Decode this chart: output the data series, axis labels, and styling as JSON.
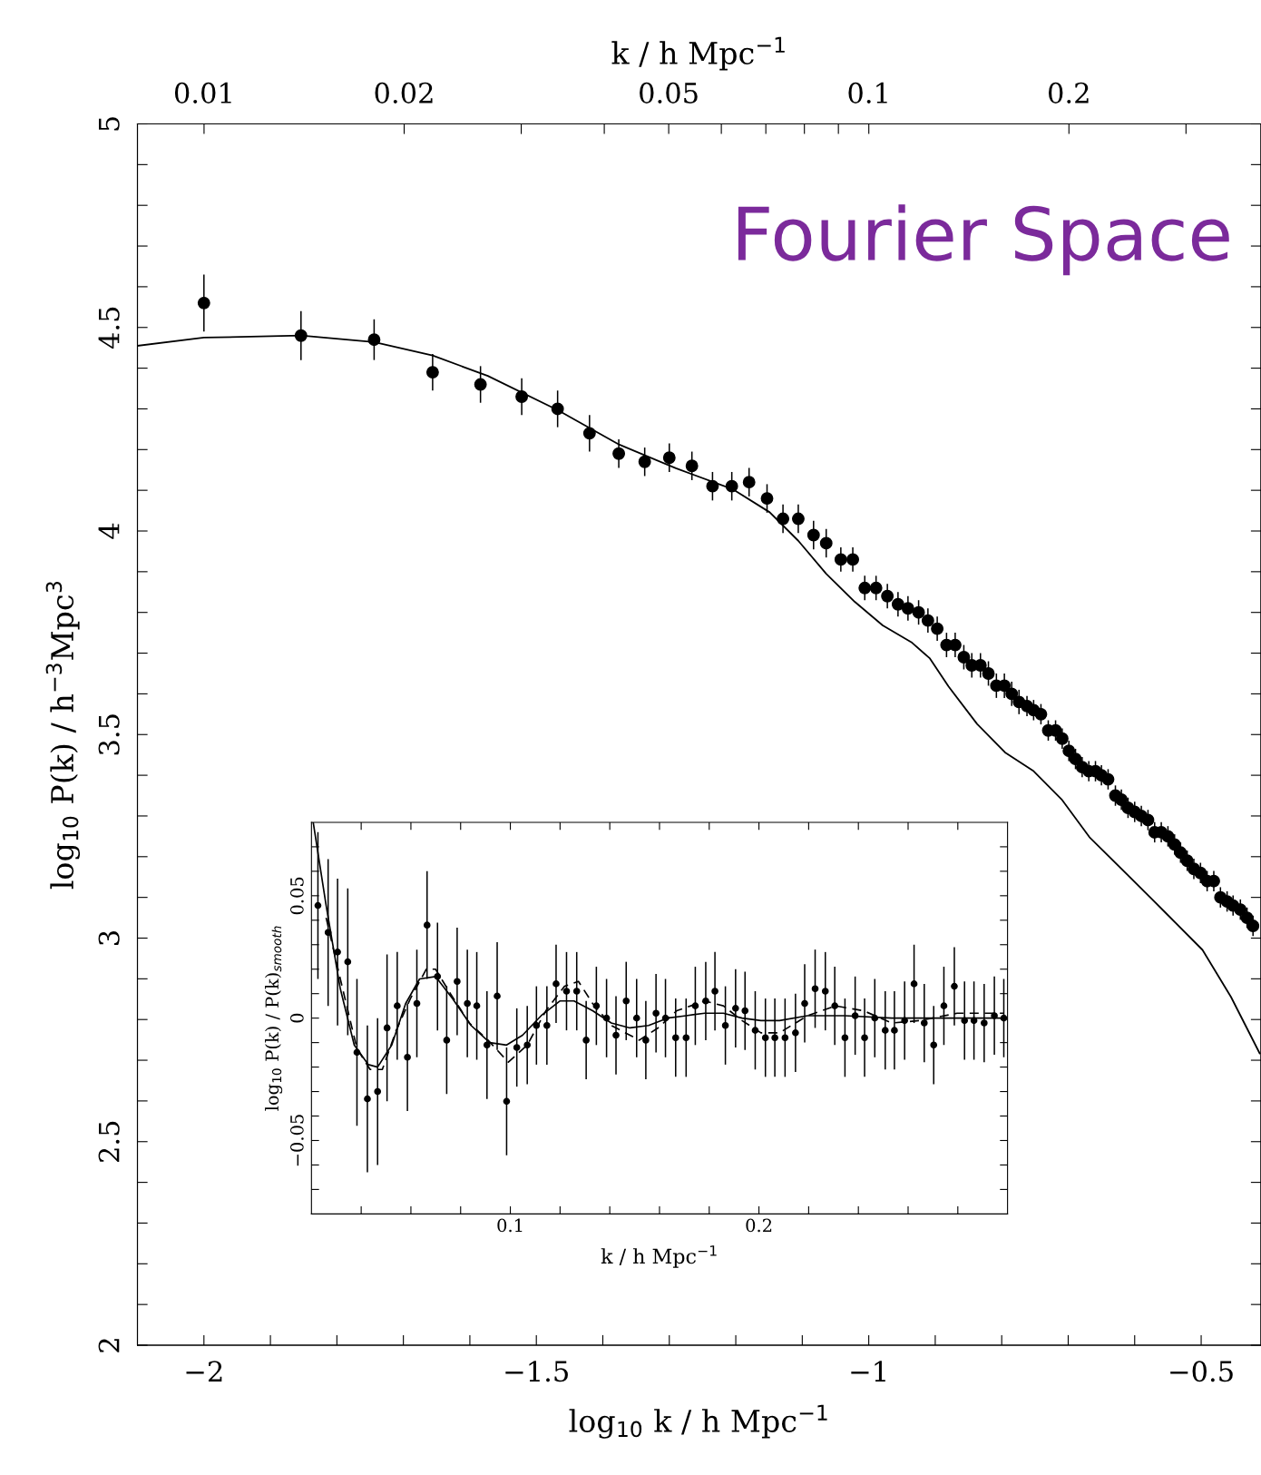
{
  "chart_data": [
    {
      "type": "scatter",
      "xlabel": "log$_{10}$ k / h Mpc$^{−1}$",
      "ylabel": "log$_{10}$ P(k) / h$^{−3}$Mpc$^{3}$",
      "x2label": "k / h Mpc$^{−1}$",
      "log": "x2",
      "grid": false,
      "annotations": [
        "Fourier Space"
      ],
      "xlim": [
        -2.1,
        -0.41
      ],
      "ylim": [
        2,
        5
      ],
      "xticks": [
        {
          "value": -2,
          "label": "−2"
        },
        {
          "value": -1.9,
          "label": null
        },
        {
          "value": -1.8,
          "label": null
        },
        {
          "value": -1.7,
          "label": null
        },
        {
          "value": -1.6,
          "label": null
        },
        {
          "value": -1.5,
          "label": "−1.5"
        },
        {
          "value": -1.4,
          "label": null
        },
        {
          "value": -1.3,
          "label": null
        },
        {
          "value": -1.2,
          "label": null
        },
        {
          "value": -1.1,
          "label": null
        },
        {
          "value": -1,
          "label": "−1"
        },
        {
          "value": -0.9,
          "label": null
        },
        {
          "value": -0.8,
          "label": null
        },
        {
          "value": -0.7,
          "label": null
        },
        {
          "value": -0.6,
          "label": null
        },
        {
          "value": -0.5,
          "label": "−0.5"
        }
      ],
      "yticks": [
        2,
        {
          "value": 2.1,
          "label": null
        },
        {
          "value": 2.2,
          "label": null
        },
        {
          "value": 2.3,
          "label": null
        },
        {
          "value": 2.4,
          "label": null
        },
        2.5,
        {
          "value": 2.6,
          "label": null
        },
        {
          "value": 2.7,
          "label": null
        },
        {
          "value": 2.8,
          "label": null
        },
        {
          "value": 2.9,
          "label": null
        },
        3,
        {
          "value": 3.1,
          "label": null
        },
        {
          "value": 3.2,
          "label": null
        },
        {
          "value": 3.3,
          "label": null
        },
        {
          "value": 3.4,
          "label": null
        },
        3.5,
        {
          "value": 3.6,
          "label": null
        },
        {
          "value": 3.7,
          "label": null
        },
        {
          "value": 3.8,
          "label": null
        },
        {
          "value": 3.9,
          "label": null
        },
        4,
        {
          "value": 4.1,
          "label": null
        },
        {
          "value": 4.2,
          "label": null
        },
        {
          "value": 4.3,
          "label": null
        },
        {
          "value": 4.4,
          "label": null
        },
        4.5,
        {
          "value": 4.6,
          "label": null
        },
        {
          "value": 4.7,
          "label": null
        },
        {
          "value": 4.8,
          "label": null
        },
        {
          "value": 4.9,
          "label": null
        },
        5
      ],
      "x2lim": [
        0.00794,
        0.389
      ],
      "x2ticks": [
        0.01,
        {
          "value": 0.03,
          "label": null
        },
        {
          "value": 0.04,
          "label": null
        },
        0.02,
        0.05,
        {
          "value": 0.06,
          "label": null
        },
        {
          "value": 0.07,
          "label": null
        },
        {
          "value": 0.08,
          "label": null
        },
        {
          "value": 0.09,
          "label": null
        },
        0.1,
        0.2,
        {
          "value": 0.3,
          "label": null
        }
      ],
      "series": [
        {
          "marker": "circle",
          "color": "#000000",
          "x": [
            -2.0,
            -1.854,
            -1.744,
            -1.656,
            -1.584,
            -1.522,
            -1.468,
            -1.42,
            -1.376,
            -1.337,
            -1.3,
            -1.266,
            -1.235,
            -1.206,
            -1.18,
            -1.153,
            -1.129,
            -1.106,
            -1.083,
            -1.064,
            -1.042,
            -1.024,
            -1.006,
            -0.989,
            -0.972,
            -0.956,
            -0.941,
            -0.925,
            -0.911,
            -0.897,
            -0.883,
            -0.87,
            -0.857,
            -0.845,
            -0.832,
            -0.82,
            -0.808,
            -0.796,
            -0.785,
            -0.774,
            -0.762,
            -0.752,
            -0.741,
            -0.73,
            -0.719,
            -0.709,
            -0.699,
            -0.689,
            -0.679,
            -0.669,
            -0.659,
            -0.65,
            -0.64,
            -0.629,
            -0.62,
            -0.61,
            -0.6,
            -0.59,
            -0.58,
            -0.57,
            -0.56,
            -0.55,
            -0.54,
            -0.531,
            -0.521,
            -0.511,
            -0.501,
            -0.491,
            -0.481,
            -0.471,
            -0.461,
            -0.452,
            -0.441,
            -0.431,
            -0.422
          ],
          "values": [
            4.56,
            4.48,
            4.47,
            4.39,
            4.36,
            4.33,
            4.3,
            4.24,
            4.19,
            4.17,
            4.18,
            4.16,
            4.11,
            4.11,
            4.12,
            4.08,
            4.03,
            4.03,
            3.99,
            3.97,
            3.93,
            3.93,
            3.86,
            3.86,
            3.84,
            3.82,
            3.81,
            3.8,
            3.78,
            3.76,
            3.72,
            3.72,
            3.69,
            3.67,
            3.67,
            3.65,
            3.62,
            3.62,
            3.6,
            3.58,
            3.57,
            3.56,
            3.55,
            3.51,
            3.51,
            3.49,
            3.46,
            3.44,
            3.42,
            3.41,
            3.41,
            3.4,
            3.39,
            3.35,
            3.34,
            3.32,
            3.31,
            3.3,
            3.29,
            3.26,
            3.26,
            3.25,
            3.23,
            3.21,
            3.19,
            3.17,
            3.16,
            3.14,
            3.14,
            3.1,
            3.09,
            3.08,
            3.07,
            3.05,
            3.03
          ],
          "errors": [
            0.07,
            0.06,
            0.05,
            0.045,
            0.045,
            0.045,
            0.045,
            0.045,
            0.035,
            0.035,
            0.035,
            0.035,
            0.035,
            0.035,
            0.035,
            0.035,
            0.035,
            0.035,
            0.035,
            0.035,
            0.03,
            0.03,
            0.03,
            0.03,
            0.03,
            0.03,
            0.03,
            0.03,
            0.03,
            0.03,
            0.03,
            0.03,
            0.03,
            0.03,
            0.03,
            0.03,
            0.03,
            0.03,
            0.03,
            0.03,
            0.025,
            0.025,
            0.025,
            0.025,
            0.025,
            0.025,
            0.025,
            0.025,
            0.025,
            0.025,
            0.025,
            0.025,
            0.025,
            0.025,
            0.025,
            0.025,
            0.025,
            0.025,
            0.025,
            0.025,
            0.025,
            0.025,
            0.025,
            0.025,
            0.025,
            0.025,
            0.025,
            0.025,
            0.025,
            0.025,
            0.025,
            0.025,
            0.025,
            0.025,
            0.025
          ]
        },
        {
          "type": "line",
          "marker": "none",
          "line_style": "solid",
          "color": "#000000",
          "x": [
            -2.1,
            -2.0,
            -1.854,
            -1.744,
            -1.656,
            -1.573,
            -1.468,
            -1.375,
            -1.29,
            -1.205,
            -1.149,
            -1.106,
            -1.064,
            -1.021,
            -0.979,
            -0.936,
            -0.908,
            -0.88,
            -0.837,
            -0.795,
            -0.752,
            -0.71,
            -0.668,
            -0.611,
            -0.554,
            -0.498,
            -0.455,
            -0.412
          ],
          "values": [
            4.455,
            4.475,
            4.48,
            4.464,
            4.431,
            4.381,
            4.297,
            4.212,
            4.154,
            4.103,
            4.046,
            3.976,
            3.895,
            3.826,
            3.768,
            3.727,
            3.687,
            3.618,
            3.526,
            3.456,
            3.41,
            3.341,
            3.248,
            3.156,
            3.063,
            2.971,
            2.855,
            2.717
          ]
        }
      ]
    },
    {
      "type": "scatter",
      "xlabel": "k / h Mpc$^{−1}$",
      "ylabel": "log$_{10}$ P(k) / P(k)$_{smooth}$",
      "grid": false,
      "xlim": [
        0.02,
        0.3
      ],
      "ylim": [
        -0.08,
        0.08
      ],
      "xticks": [
        {
          "value": 0.04,
          "label": null
        },
        {
          "value": 0.06,
          "label": null
        },
        {
          "value": 0.08,
          "label": null
        },
        0.1,
        {
          "value": 0.12,
          "label": null
        },
        {
          "value": 0.14,
          "label": null
        },
        {
          "value": 0.16,
          "label": null
        },
        {
          "value": 0.18,
          "label": null
        },
        0.2,
        {
          "value": 0.22,
          "label": null
        },
        {
          "value": 0.24,
          "label": null
        },
        {
          "value": 0.26,
          "label": null
        },
        {
          "value": 0.28,
          "label": null
        }
      ],
      "yticks": [
        {
          "value": -0.07,
          "label": null
        },
        {
          "value": -0.06,
          "label": null
        },
        {
          "value": -0.05,
          "label": "−0.05"
        },
        {
          "value": -0.04,
          "label": null
        },
        {
          "value": -0.03,
          "label": null
        },
        {
          "value": -0.02,
          "label": null
        },
        {
          "value": -0.01,
          "label": null
        },
        0,
        {
          "value": 0.01,
          "label": null
        },
        {
          "value": 0.02,
          "label": null
        },
        {
          "value": 0.03,
          "label": null
        },
        {
          "value": 0.04,
          "label": null
        },
        0.05,
        {
          "value": 0.06,
          "label": null
        },
        {
          "value": 0.07,
          "label": null
        }
      ],
      "series": [
        {
          "marker": "circle",
          "color": "#000000",
          "x": [
            0.0226,
            0.0267,
            0.0305,
            0.0346,
            0.0383,
            0.0425,
            0.0466,
            0.0504,
            0.0545,
            0.0586,
            0.0624,
            0.0665,
            0.0707,
            0.0744,
            0.0786,
            0.0827,
            0.0865,
            0.0906,
            0.0947,
            0.0985,
            0.1026,
            0.1068,
            0.1105,
            0.1147,
            0.1184,
            0.1226,
            0.1267,
            0.1305,
            0.1346,
            0.1387,
            0.1425,
            0.1466,
            0.1508,
            0.1545,
            0.1586,
            0.1624,
            0.1665,
            0.1707,
            0.1744,
            0.1786,
            0.1823,
            0.1865,
            0.1906,
            0.1944,
            0.1985,
            0.2026,
            0.2064,
            0.2105,
            0.2147,
            0.2184,
            0.2226,
            0.2267,
            0.2305,
            0.2346,
            0.2387,
            0.2425,
            0.2466,
            0.2508,
            0.2545,
            0.2586,
            0.2624,
            0.2665,
            0.2703,
            0.2744,
            0.2786,
            0.2827,
            0.2865,
            0.2906,
            0.2947,
            0.2985
          ],
          "values": [
            0.046,
            0.035,
            0.027,
            0.023,
            -0.014,
            -0.033,
            -0.03,
            -0.004,
            0.005,
            -0.016,
            0.006,
            0.038,
            0.017,
            -0.009,
            0.015,
            0.006,
            0.005,
            -0.011,
            0.009,
            -0.034,
            -0.012,
            -0.011,
            -0.003,
            -0.003,
            0.014,
            0.011,
            0.011,
            -0.009,
            0.005,
            0.0,
            -0.007,
            0.007,
            0.0,
            -0.009,
            0.002,
            0.0,
            -0.008,
            -0.008,
            0.005,
            0.007,
            0.011,
            -0.003,
            0.004,
            0.003,
            -0.005,
            -0.008,
            -0.008,
            -0.008,
            -0.006,
            0.006,
            0.012,
            0.011,
            0.005,
            -0.008,
            0.001,
            -0.008,
            0.0,
            -0.005,
            -0.005,
            -0.001,
            0.014,
            -0.002,
            -0.011,
            0.005,
            0.013,
            -0.001,
            -0.001,
            -0.002,
            0.001,
            0.0
          ],
          "errors": [
            0.03,
            0.03,
            0.03,
            0.03,
            0.03,
            0.03,
            0.03,
            0.03,
            0.022,
            0.022,
            0.022,
            0.022,
            0.022,
            0.022,
            0.022,
            0.022,
            0.022,
            0.022,
            0.022,
            0.022,
            0.016,
            0.016,
            0.016,
            0.016,
            0.016,
            0.016,
            0.016,
            0.016,
            0.016,
            0.016,
            0.016,
            0.016,
            0.016,
            0.016,
            0.016,
            0.016,
            0.016,
            0.016,
            0.016,
            0.016,
            0.016,
            0.016,
            0.016,
            0.016,
            0.016,
            0.016,
            0.016,
            0.016,
            0.016,
            0.016,
            0.016,
            0.016,
            0.016,
            0.016,
            0.016,
            0.016,
            0.016,
            0.016,
            0.016,
            0.016,
            0.016,
            0.016,
            0.016,
            0.016,
            0.016,
            0.016,
            0.016,
            0.016,
            0.016,
            0.016
          ]
        },
        {
          "type": "line",
          "marker": "none",
          "line_style": "solid",
          "color": "#000000",
          "x": [
            0.0207,
            0.0259,
            0.0316,
            0.0372,
            0.0429,
            0.0466,
            0.0523,
            0.0579,
            0.0635,
            0.0699,
            0.0767,
            0.0842,
            0.0917,
            0.0985,
            0.1049,
            0.1124,
            0.1199,
            0.1256,
            0.1331,
            0.1406,
            0.1481,
            0.1556,
            0.1632,
            0.1707,
            0.1782,
            0.1857,
            0.1932,
            0.2008,
            0.2083,
            0.2195,
            0.2346,
            0.2534,
            0.2722,
            0.2985
          ],
          "values": [
            0.08,
            0.046,
            0.012,
            -0.011,
            -0.019,
            -0.02,
            -0.011,
            0.006,
            0.016,
            0.017,
            0.008,
            -0.003,
            -0.01,
            -0.011,
            -0.007,
            0.001,
            0.007,
            0.007,
            0.003,
            -0.002,
            -0.004,
            -0.003,
            0.0,
            0.001,
            0.002,
            0.002,
            0.0,
            -0.001,
            -0.001,
            0.001,
            0.001,
            0.0,
            0.0,
            0.0
          ]
        },
        {
          "type": "line",
          "marker": "none",
          "line_style": "dashed",
          "color": "#000000",
          "x": [
            0.0259,
            0.0316,
            0.0383,
            0.0436,
            0.0485,
            0.0541,
            0.0598,
            0.0662,
            0.0699,
            0.0759,
            0.0835,
            0.091,
            0.0992,
            0.1068,
            0.1143,
            0.1218,
            0.1274,
            0.1331,
            0.1406,
            0.1519,
            0.1594,
            0.1669,
            0.1782,
            0.1857,
            0.1932,
            0.2008,
            0.2083,
            0.2195,
            0.2308,
            0.2421,
            0.2534,
            0.2647,
            0.2797,
            0.2985
          ],
          "values": [
            0.041,
            0.016,
            -0.0125,
            -0.021,
            -0.021,
            -0.005,
            0.008,
            0.02,
            0.02,
            0.01,
            -0.002,
            -0.009,
            -0.018,
            -0.011,
            0.003,
            0.013,
            0.015,
            0.006,
            -0.003,
            -0.009,
            -0.004,
            0.003,
            0.007,
            0.005,
            -0.001,
            -0.006,
            -0.006,
            0.001,
            0.005,
            0.003,
            -0.002,
            -0.001,
            0.002,
            0.002
          ]
        }
      ]
    }
  ]
}
